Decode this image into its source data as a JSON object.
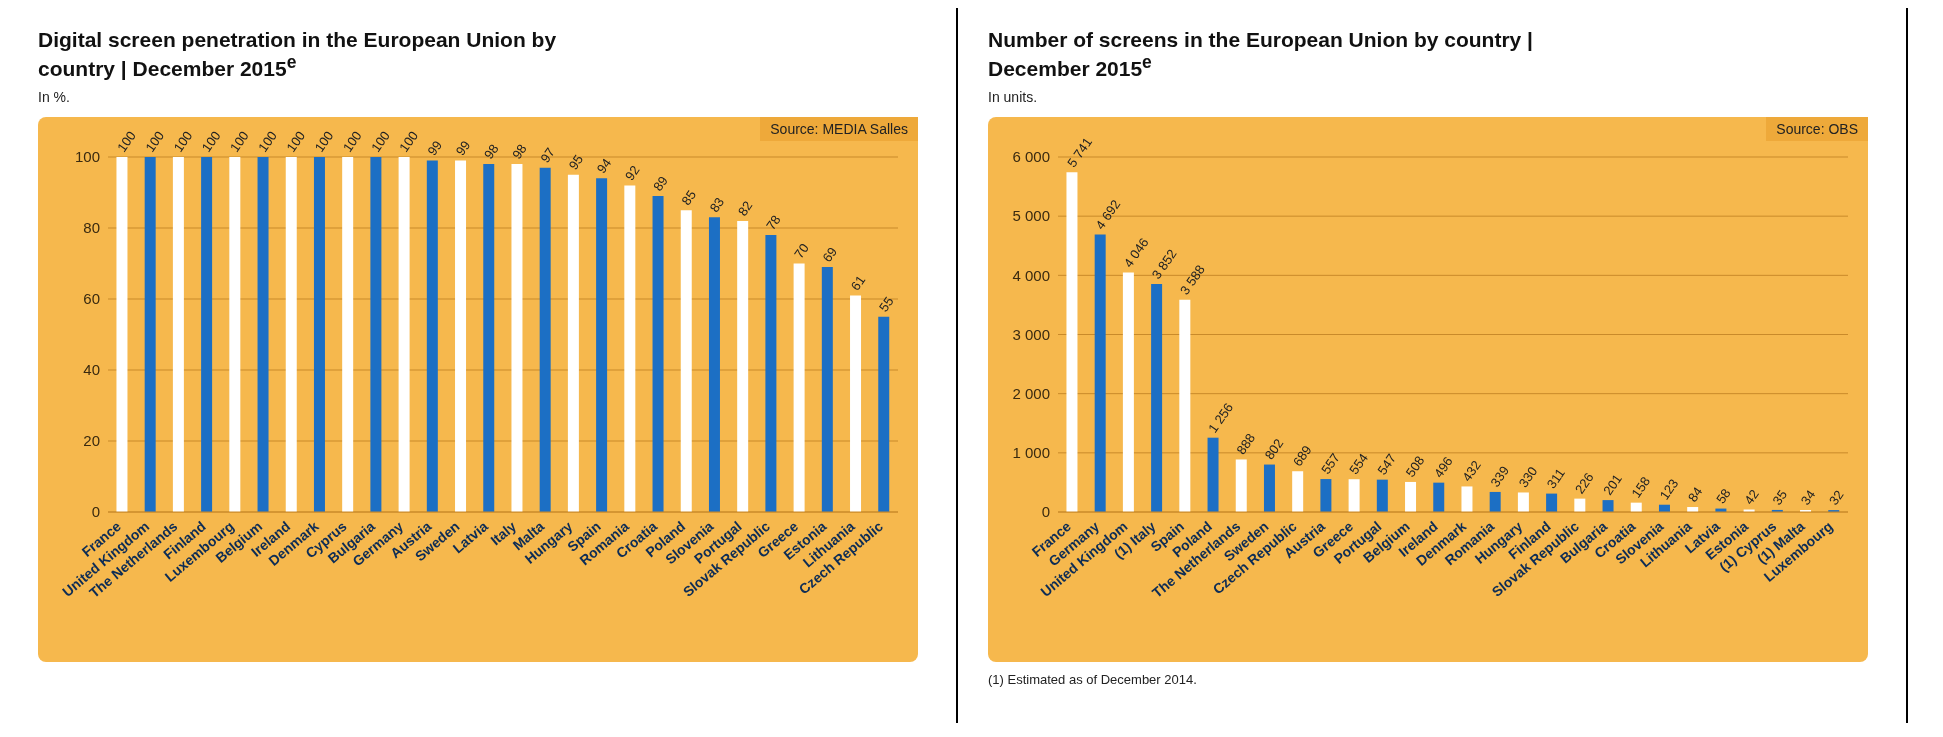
{
  "chart_data": [
    {
      "type": "bar",
      "title": "Digital screen penetration in the European Union by country | December 2015$^{e}$",
      "subtitle": "In %.",
      "annotations": [
        "Source: MEDIA Salles"
      ],
      "categories": [
        "France",
        "United Kingdom",
        "The Netherlands",
        "Finland",
        "Luxembourg",
        "Belgium",
        "Ireland",
        "Denmark",
        "Cyprus",
        "Bulgaria",
        "Germany",
        "Austria",
        "Sweden",
        "Latvia",
        "Italy",
        "Malta",
        "Hungary",
        "Spain",
        "Romania",
        "Croatia",
        "Poland",
        "Slovenia",
        "Portugal",
        "Slovak Republic",
        "Greece",
        "Estonia",
        "Lithuania",
        "Czech Republic"
      ],
      "values": [
        100,
        100,
        100,
        100,
        100,
        100,
        100,
        100,
        100,
        100,
        100,
        99,
        99,
        98,
        98,
        97,
        95,
        94,
        92,
        89,
        85,
        83,
        82,
        78,
        70,
        69,
        61,
        55
      ],
      "colors": [
        "#ffffff",
        "#1c6fc4",
        "#ffffff",
        "#1c6fc4",
        "#ffffff",
        "#1c6fc4",
        "#ffffff",
        "#1c6fc4",
        "#ffffff",
        "#1c6fc4",
        "#ffffff",
        "#1c6fc4",
        "#ffffff",
        "#1c6fc4",
        "#ffffff",
        "#1c6fc4",
        "#ffffff",
        "#1c6fc4",
        "#ffffff",
        "#1c6fc4",
        "#ffffff",
        "#1c6fc4",
        "#ffffff",
        "#1c6fc4",
        "#ffffff",
        "#1c6fc4",
        "#ffffff",
        "#1c6fc4"
      ],
      "data_labels": true,
      "ylim": [
        0,
        100
      ],
      "yticks": [
        0,
        20,
        40,
        60,
        80,
        100
      ],
      "grid": "y"
    },
    {
      "type": "bar",
      "title": "Number of screens in the European Union by country | December 2015$^{e}$",
      "subtitle": "In units.",
      "annotations": [
        "Source: OBS",
        "(1) Estimated as of December 2014."
      ],
      "categories": [
        "France",
        "Germany",
        "United Kingdom",
        "(1) Italy",
        "Spain",
        "Poland",
        "The Netherlands",
        "Sweden",
        "Czech Republic",
        "Austria",
        "Greece",
        "Portugal",
        "Belgium",
        "Ireland",
        "Denmark",
        "Romania",
        "Hungary",
        "Finland",
        "Slovak Republic",
        "Bulgaria",
        "Croatia",
        "Slovenia",
        "Lithuania",
        "Latvia",
        "Estonia",
        "(1) Cyprus",
        "(1) Malta",
        "Luxembourg"
      ],
      "values": [
        5741,
        4692,
        4046,
        3852,
        3588,
        1256,
        888,
        802,
        689,
        557,
        554,
        547,
        508,
        496,
        432,
        339,
        330,
        311,
        226,
        201,
        158,
        123,
        84,
        58,
        42,
        35,
        34,
        32
      ],
      "value_labels": [
        "5 741",
        "4 692",
        "4 046",
        "3 852",
        "3 588",
        "1 256",
        "888",
        "802",
        "689",
        "557",
        "554",
        "547",
        "508",
        "496",
        "432",
        "339",
        "330",
        "311",
        "226",
        "201",
        "158",
        "123",
        "84",
        "58",
        "42",
        "35",
        "34",
        "32"
      ],
      "colors": [
        "#ffffff",
        "#1c6fc4",
        "#ffffff",
        "#1c6fc4",
        "#ffffff",
        "#1c6fc4",
        "#ffffff",
        "#1c6fc4",
        "#ffffff",
        "#1c6fc4",
        "#ffffff",
        "#1c6fc4",
        "#ffffff",
        "#1c6fc4",
        "#ffffff",
        "#1c6fc4",
        "#ffffff",
        "#1c6fc4",
        "#ffffff",
        "#1c6fc4",
        "#ffffff",
        "#1c6fc4",
        "#ffffff",
        "#1c6fc4",
        "#ffffff",
        "#1c6fc4",
        "#ffffff",
        "#1c6fc4"
      ],
      "ylim": [
        0,
        6000
      ],
      "yticks": [
        0,
        {
          "value": 1000,
          "label": "1 000"
        },
        {
          "value": 2000,
          "label": "2 000"
        },
        {
          "value": 3000,
          "label": "3 000"
        },
        {
          "value": 4000,
          "label": "4 000"
        },
        {
          "value": 5000,
          "label": "5 000"
        },
        {
          "value": 6000,
          "label": "6 000"
        }
      ],
      "grid": "y"
    }
  ]
}
